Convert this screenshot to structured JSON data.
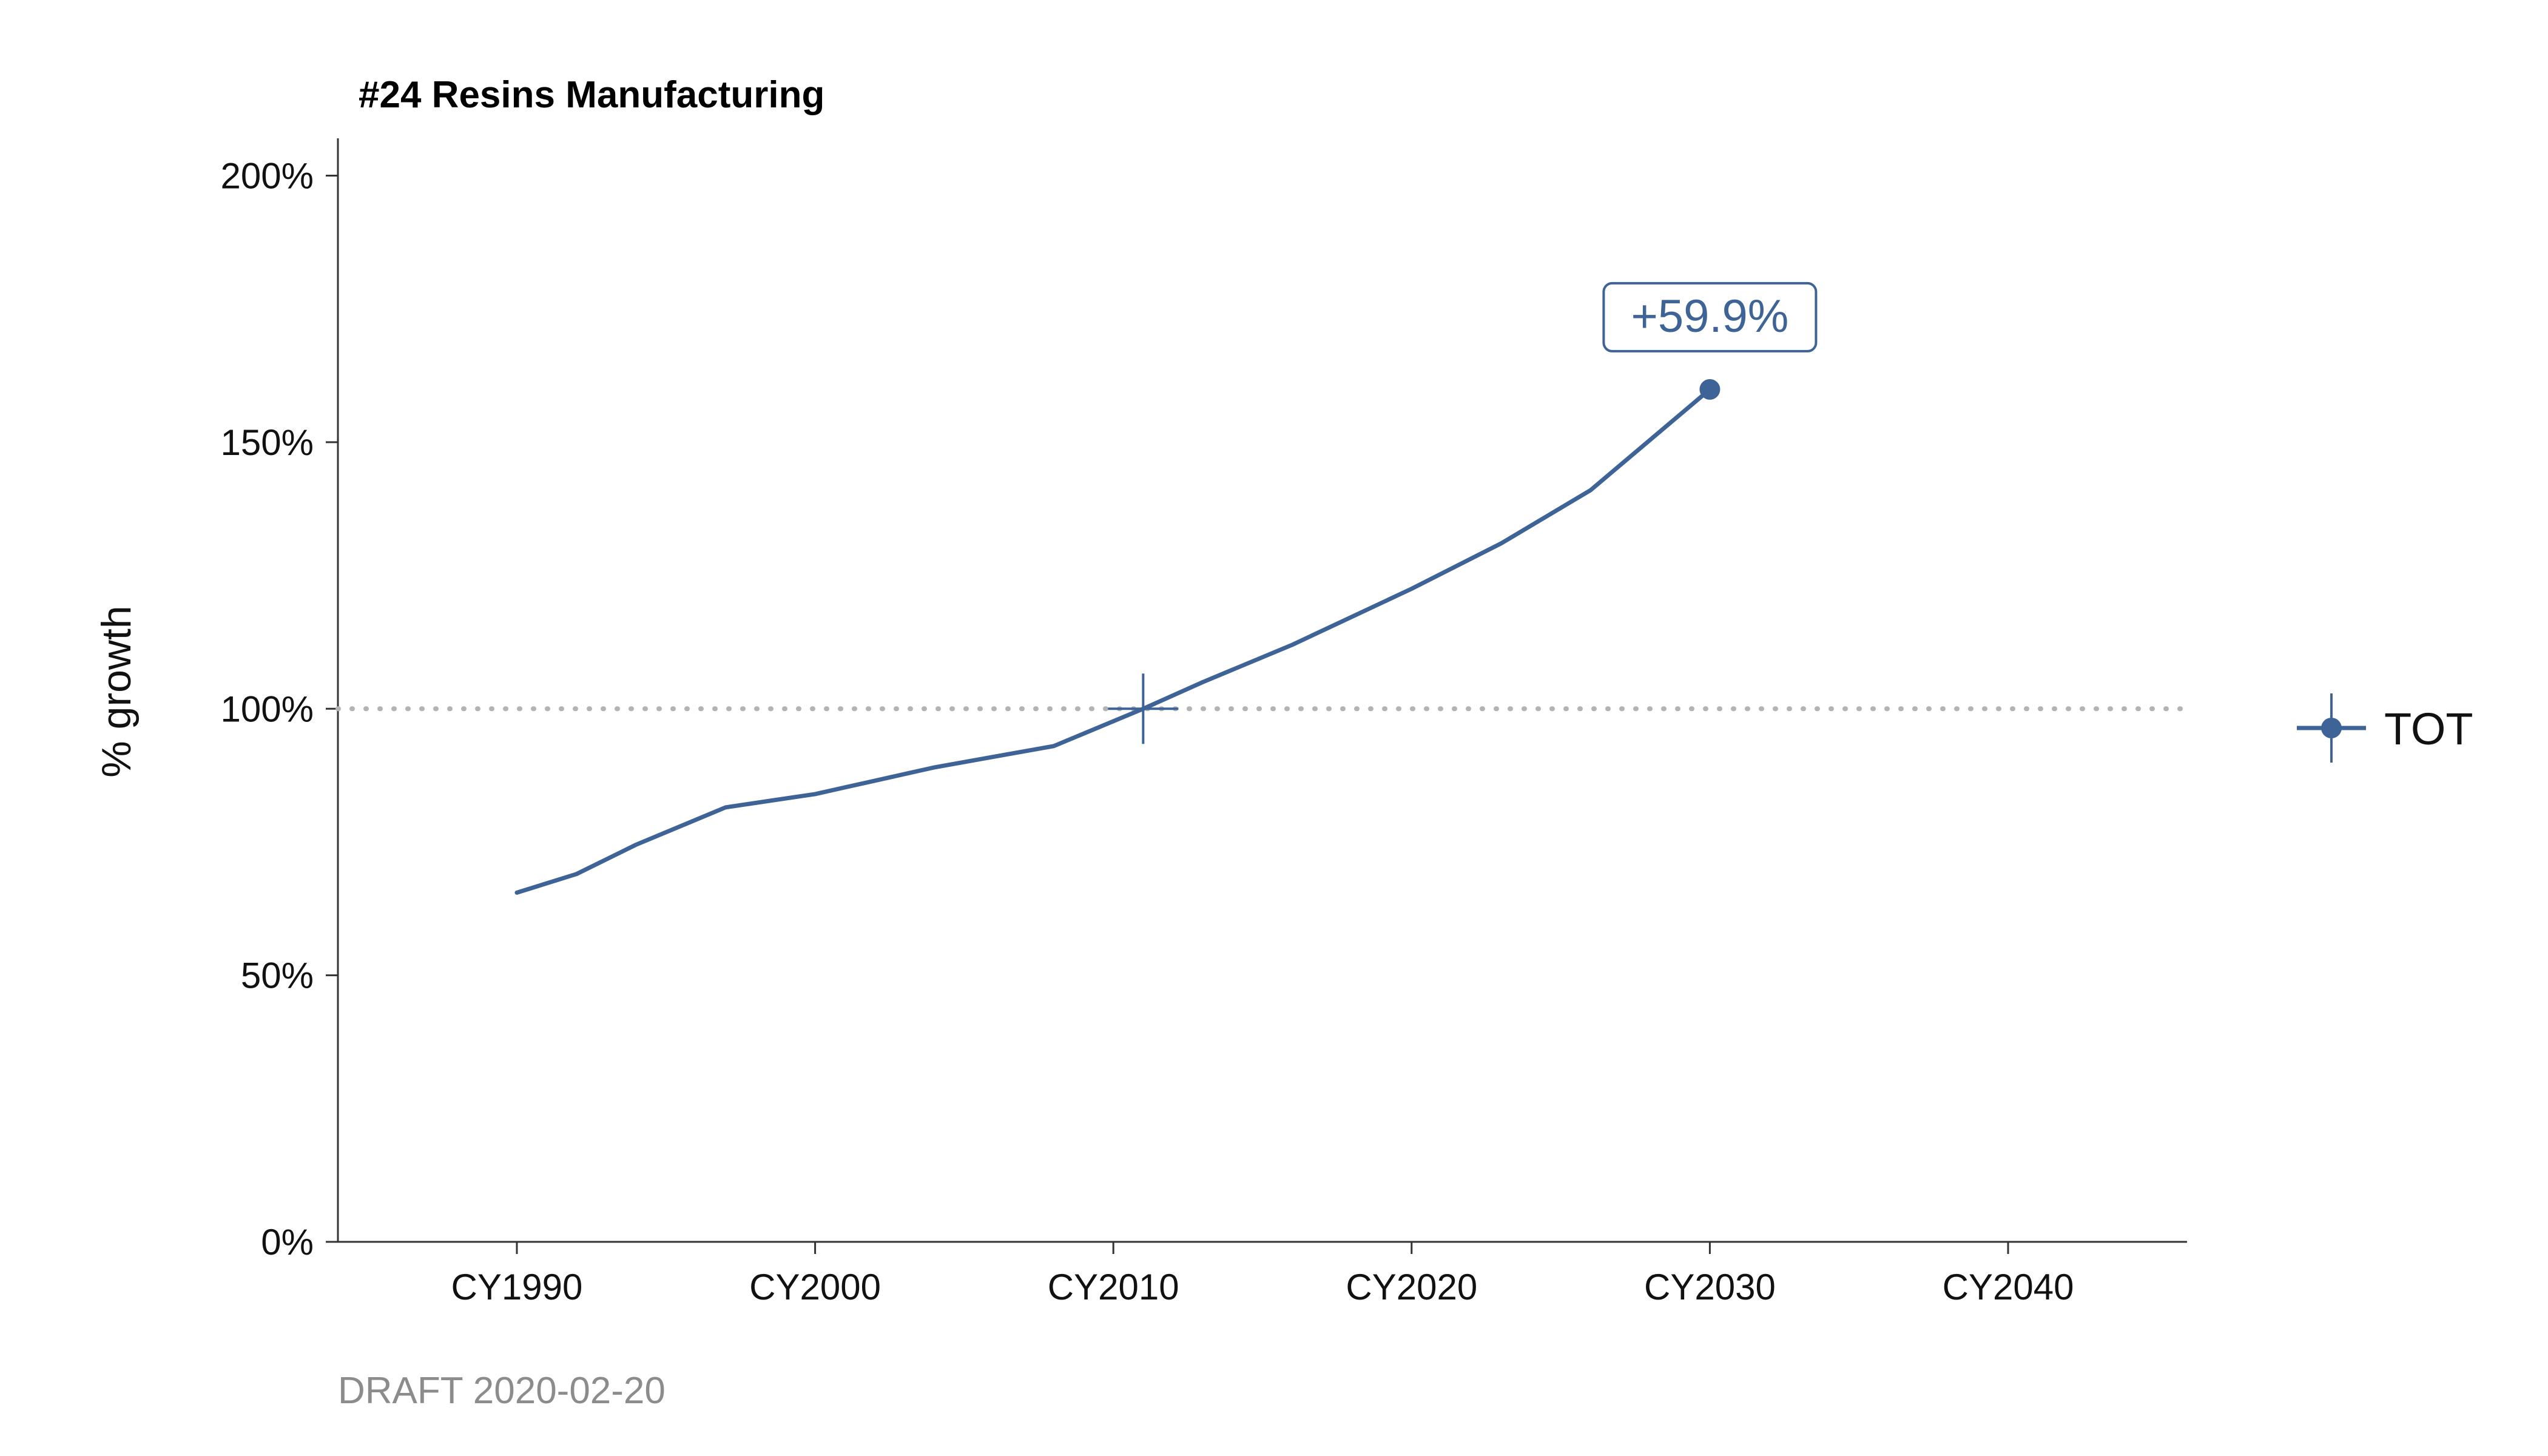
{
  "chart_data": {
    "type": "line",
    "title": "#24 Resins Manufacturing",
    "xlabel": "",
    "ylabel": "% growth",
    "xlim": [
      1984,
      2046
    ],
    "ylim": [
      0,
      2.07
    ],
    "x_ticks": [
      1990,
      2000,
      2010,
      2020,
      2030,
      2040
    ],
    "x_tick_labels": [
      "CY1990",
      "CY2000",
      "CY2010",
      "CY2020",
      "CY2030",
      "CY2040"
    ],
    "y_ticks": [
      0,
      0.5,
      1.0,
      1.5,
      2.0
    ],
    "y_tick_labels": [
      "0%",
      "50%",
      "100%",
      "150%",
      "200%"
    ],
    "reference_line": {
      "y": 1.0,
      "style": "dotted"
    },
    "base_year_marker": {
      "x": 2011,
      "y": 1.0
    },
    "series": [
      {
        "name": "TOT",
        "color": "#3e6497",
        "x": [
          1990,
          1992,
          1994,
          1997,
          2000,
          2002,
          2004,
          2006,
          2008,
          2011,
          2013,
          2016,
          2020,
          2023,
          2026,
          2030
        ],
        "values": [
          0.655,
          0.69,
          0.745,
          0.815,
          0.84,
          0.865,
          0.89,
          0.91,
          0.93,
          1.0,
          1.05,
          1.12,
          1.225,
          1.31,
          1.41,
          1.599
        ]
      }
    ],
    "end_point": {
      "x": 2030,
      "y": 1.599
    },
    "annotation": {
      "text": "+59.9%",
      "x": 2030,
      "y": 1.599
    },
    "legend": {
      "position": "right",
      "entries": [
        "TOT"
      ]
    },
    "grid": false
  },
  "caption": "DRAFT 2020-02-20"
}
